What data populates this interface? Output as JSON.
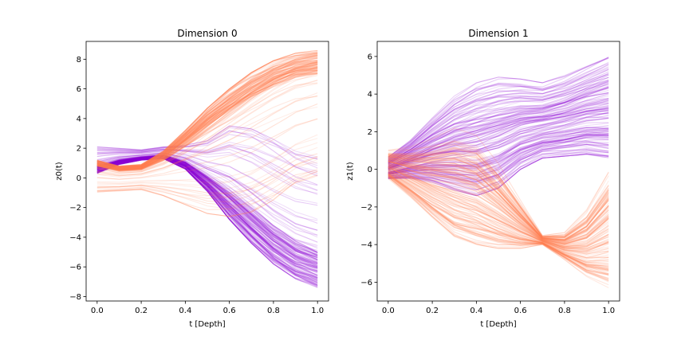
{
  "colors": {
    "purple": "#8B00D4",
    "orange": "#FF7F50"
  },
  "chart_data": [
    {
      "type": "line",
      "title": "Dimension 0",
      "xlabel": "t [Depth]",
      "ylabel": "z0(t)",
      "xlim": [
        -0.05,
        1.05
      ],
      "ylim": [
        -8.3,
        9.2
      ],
      "xticks": [
        "0.0",
        "0.2",
        "0.4",
        "0.6",
        "0.8",
        "1.0"
      ],
      "xtick_values": [
        0.0,
        0.2,
        0.4,
        0.6,
        0.8,
        1.0
      ],
      "yticks": [
        "−8",
        "−6",
        "−4",
        "−2",
        "0",
        "2",
        "4",
        "6",
        "8"
      ],
      "ytick_values": [
        -8,
        -6,
        -4,
        -2,
        0,
        2,
        4,
        6,
        8
      ],
      "grid": false,
      "series": [
        {
          "color": "purple",
          "x": [
            0.0,
            0.1,
            0.2,
            0.3,
            0.4,
            0.5,
            0.6,
            0.7,
            0.8,
            0.9,
            1.0
          ],
          "y_low": [
            0.3,
            0.9,
            1.2,
            1.3,
            0.6,
            -0.9,
            -2.8,
            -4.4,
            -5.8,
            -6.8,
            -7.4
          ],
          "y_high": [
            2.1,
            2.0,
            1.9,
            2.1,
            2.2,
            2.5,
            3.5,
            3.3,
            2.6,
            1.8,
            1.4
          ],
          "main_end": [
            -7.4,
            -5.0
          ]
        },
        {
          "color": "orange",
          "x": [
            0.0,
            0.1,
            0.2,
            0.3,
            0.4,
            0.5,
            0.6,
            0.7,
            0.8,
            0.9,
            1.0
          ],
          "y_low": [
            -1.0,
            -0.9,
            -0.8,
            -1.2,
            -1.8,
            -2.4,
            -2.6,
            -2.3,
            -1.5,
            -0.5,
            0.0
          ],
          "y_high": [
            1.2,
            0.8,
            0.9,
            1.8,
            3.2,
            4.7,
            6.0,
            7.1,
            7.9,
            8.4,
            8.6
          ],
          "main_end": [
            7.0,
            8.6
          ]
        }
      ]
    },
    {
      "type": "line",
      "title": "Dimension 1",
      "xlabel": "t [Depth]",
      "ylabel": "z1(t)",
      "xlim": [
        -0.05,
        1.05
      ],
      "ylim": [
        -7.0,
        6.8
      ],
      "xticks": [
        "0.0",
        "0.2",
        "0.4",
        "0.6",
        "0.8",
        "1.0"
      ],
      "xtick_values": [
        0.0,
        0.2,
        0.4,
        0.6,
        0.8,
        1.0
      ],
      "yticks": [
        "−6",
        "−4",
        "−2",
        "0",
        "2",
        "4",
        "6"
      ],
      "ytick_values": [
        -6,
        -4,
        -2,
        0,
        2,
        4,
        6
      ],
      "grid": false,
      "series": [
        {
          "color": "purple",
          "x": [
            0.0,
            0.1,
            0.2,
            0.3,
            0.4,
            0.5,
            0.6,
            0.7,
            0.8,
            0.9,
            1.0
          ],
          "y_low": [
            -0.5,
            -0.5,
            -0.7,
            -1.1,
            -1.4,
            -1.0,
            0.0,
            0.6,
            0.7,
            0.8,
            0.6
          ],
          "y_high": [
            0.7,
            1.6,
            2.8,
            3.9,
            4.6,
            4.9,
            4.8,
            4.6,
            5.0,
            5.6,
            6.2
          ],
          "main_end": [
            0.6,
            6.0
          ]
        },
        {
          "color": "orange",
          "x": [
            0.0,
            0.1,
            0.2,
            0.3,
            0.4,
            0.5,
            0.6,
            0.7,
            0.8,
            0.9,
            1.0
          ],
          "y_low": [
            -0.5,
            -1.5,
            -2.6,
            -3.6,
            -4.0,
            -4.2,
            -4.2,
            -4.0,
            -4.8,
            -5.7,
            -6.3
          ],
          "y_high": [
            1.1,
            1.3,
            1.7,
            2.2,
            1.8,
            0.3,
            -1.6,
            -3.5,
            -3.3,
            -2.0,
            0.2
          ],
          "main_end": [
            -6.2,
            -0.8
          ]
        }
      ]
    }
  ]
}
